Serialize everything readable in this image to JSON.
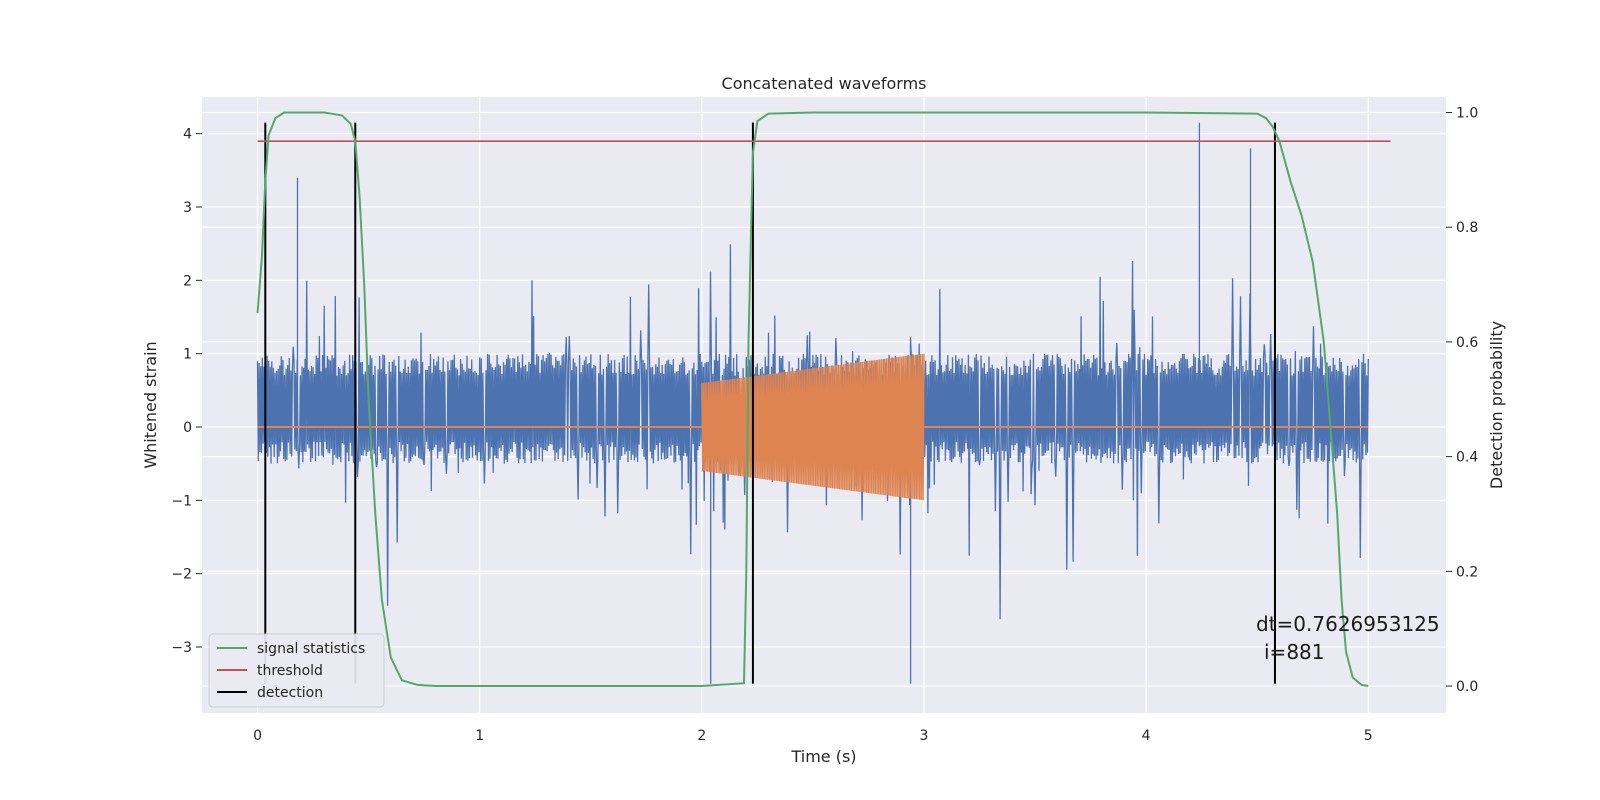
{
  "chart_data": {
    "type": "line",
    "title": "Concatenated waveforms",
    "xlabel": "Time (s)",
    "ylabel": "Whitened strain",
    "y2label": "Detection probability",
    "xlim": [
      -0.25,
      5.35
    ],
    "ylim": [
      -3.9,
      4.5
    ],
    "y2lim": [
      -0.047,
      1.027
    ],
    "xticks": [
      "0",
      "1",
      "2",
      "3",
      "4",
      "5"
    ],
    "xtick_values": [
      0,
      1,
      2,
      3,
      4,
      5
    ],
    "yticks": [
      "−3",
      "−2",
      "−1",
      "0",
      "1",
      "2",
      "3",
      "4"
    ],
    "ytick_values": [
      -3,
      -2,
      -1,
      0,
      1,
      2,
      3,
      4
    ],
    "y2ticks": [
      "0.0",
      "0.2",
      "0.4",
      "0.6",
      "0.8",
      "1.0"
    ],
    "y2tick_values": [
      0,
      0.2,
      0.4,
      0.6,
      0.8,
      1.0
    ],
    "grid": true,
    "legend_position": "lower-left",
    "series": [
      {
        "name": "signal statistics",
        "axis": "right",
        "color": "#55a868",
        "x": [
          0.0,
          0.02,
          0.035,
          0.05,
          0.08,
          0.12,
          0.2,
          0.3,
          0.38,
          0.42,
          0.44,
          0.46,
          0.48,
          0.5,
          0.53,
          0.56,
          0.6,
          0.65,
          0.72,
          0.8,
          1.0,
          1.5,
          2.0,
          2.19,
          2.2,
          2.21,
          2.23,
          2.25,
          2.3,
          2.5,
          3.0,
          3.5,
          4.0,
          4.5,
          4.54,
          4.57,
          4.6,
          4.65,
          4.7,
          4.75,
          4.8,
          4.83,
          4.86,
          4.88,
          4.9,
          4.93,
          4.97,
          5.0
        ],
        "y": [
          0.65,
          0.75,
          0.88,
          0.96,
          0.99,
          1.0,
          1.0,
          1.0,
          0.995,
          0.98,
          0.95,
          0.85,
          0.7,
          0.5,
          0.3,
          0.15,
          0.05,
          0.01,
          0.002,
          0.0,
          0.0,
          0.0,
          0.0,
          0.005,
          0.2,
          0.6,
          0.93,
          0.985,
          0.998,
          1.0,
          1.0,
          1.0,
          1.0,
          0.998,
          0.99,
          0.975,
          0.95,
          0.88,
          0.82,
          0.74,
          0.6,
          0.45,
          0.3,
          0.15,
          0.06,
          0.015,
          0.002,
          0.0
        ]
      },
      {
        "name": "threshold",
        "axis": "right",
        "color": "#c44e52",
        "x": [
          0,
          5.1
        ],
        "y": [
          0.95,
          0.95
        ]
      },
      {
        "name": "detection",
        "axis": "left",
        "color": "#000000",
        "x_positions": [
          0.035,
          0.44,
          2.23,
          4.58
        ],
        "y_range": [
          -3.5,
          4.15
        ]
      },
      {
        "name": "",
        "axis": "left",
        "color": "#4c72b0",
        "description_role": "whitened noise strain",
        "x_range": [
          0,
          5
        ],
        "band": [
          -0.5,
          1.0
        ],
        "peak_max": 4.15,
        "peak_min": -3.5
      },
      {
        "name": "",
        "axis": "left",
        "color": "#dd8452",
        "description_role": "injected chirp",
        "x_range": [
          2.0,
          3.0
        ],
        "amp_start": 0.6,
        "amp_end": 1.0,
        "baseline": 0
      }
    ],
    "annotations": [
      {
        "text": "dt=0.7626953125",
        "x": 5.15,
        "y2": 0.11
      },
      {
        "text": "i=881",
        "x": 5.05,
        "y2": 0.06
      }
    ]
  }
}
